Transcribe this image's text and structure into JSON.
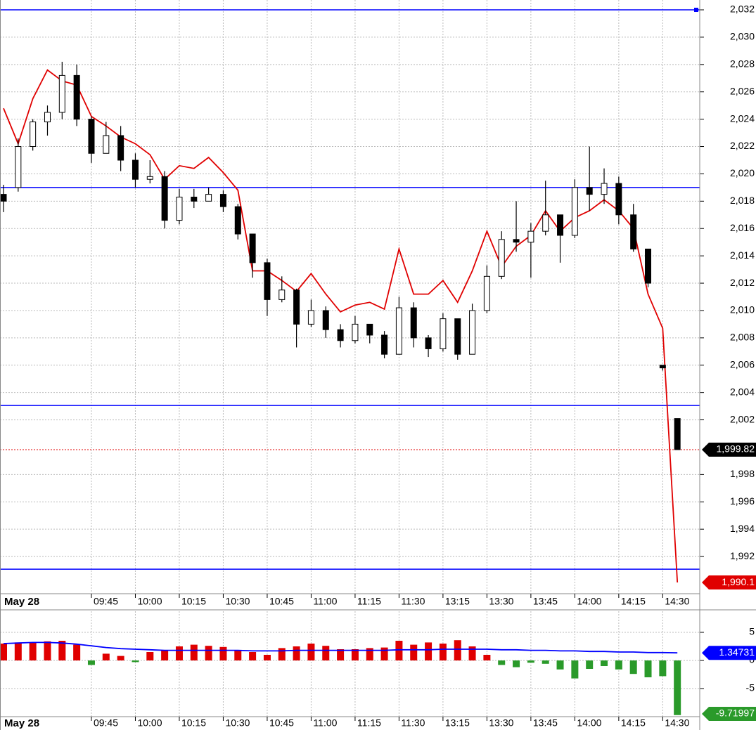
{
  "chart_data": [
    {
      "type": "candlestick",
      "date_label": "May 28",
      "categories": [
        null,
        null,
        null,
        null,
        null,
        null,
        "09:45",
        null,
        null,
        "10:00",
        null,
        null,
        "10:15",
        null,
        null,
        "10:30",
        null,
        null,
        "10:45",
        null,
        null,
        "11:00",
        null,
        null,
        "11:15",
        null,
        null,
        "11:30",
        null,
        null,
        "13:15",
        null,
        null,
        "13:30",
        null,
        null,
        "13:45",
        null,
        null,
        "14:00",
        null,
        null,
        "14:15",
        null,
        null,
        "14:30",
        null
      ],
      "open": [
        2018.5,
        2019.0,
        2022.0,
        2023.8,
        2024.5,
        2027.2,
        2024.0,
        2021.5,
        2022.8,
        2021.0,
        2019.6,
        2019.8,
        2016.6,
        2018.3,
        2018.0,
        2018.5,
        2017.6,
        2015.6,
        2013.5,
        2010.8,
        2011.5,
        2009.0,
        2010.0,
        2008.6,
        2007.8,
        2009.0,
        2008.2,
        2006.8,
        2010.2,
        2008.0,
        2007.2,
        2009.4,
        2006.8,
        2010.0,
        2012.5,
        2015.2,
        2015.0,
        2015.8,
        2017.0,
        2015.5,
        2019.0,
        2018.5,
        2019.3,
        2017.0,
        2014.5,
        2006.0,
        2002.1
      ],
      "high": [
        2019.2,
        2022.6,
        2024.0,
        2025.0,
        2028.2,
        2028.0,
        2024.2,
        2023.8,
        2023.5,
        2021.5,
        2021.0,
        2020.2,
        2018.9,
        2018.9,
        2019.0,
        2018.8,
        2017.8,
        2015.6,
        2013.8,
        2012.5,
        2011.6,
        2010.8,
        2010.3,
        2009.0,
        2009.6,
        2009.0,
        2008.5,
        2011.0,
        2010.6,
        2008.2,
        2009.8,
        2009.4,
        2010.5,
        2013.3,
        2015.8,
        2018.0,
        2016.4,
        2019.5,
        2017.0,
        2019.6,
        2022.0,
        2020.4,
        2019.8,
        2017.8,
        2014.5,
        2006.0,
        2002.1
      ],
      "low": [
        2017.2,
        2018.7,
        2021.7,
        2022.8,
        2024.0,
        2023.5,
        2020.8,
        2021.5,
        2020.2,
        2019.0,
        2019.3,
        2016.0,
        2016.3,
        2017.5,
        2018.0,
        2017.2,
        2015.2,
        2012.4,
        2009.6,
        2010.6,
        2007.3,
        2008.8,
        2008.0,
        2007.3,
        2007.6,
        2007.6,
        2006.5,
        2006.8,
        2007.3,
        2006.6,
        2007.0,
        2006.4,
        2006.8,
        2009.8,
        2012.3,
        2014.3,
        2012.4,
        2015.5,
        2013.5,
        2015.3,
        2017.3,
        2017.8,
        2016.3,
        2014.3,
        2011.7,
        2005.6,
        1999.82
      ],
      "close": [
        2018.0,
        2022.0,
        2023.8,
        2024.5,
        2027.2,
        2024.0,
        2021.5,
        2022.8,
        2021.0,
        2019.6,
        2019.8,
        2016.6,
        2018.3,
        2018.0,
        2018.5,
        2017.6,
        2015.6,
        2013.5,
        2010.8,
        2011.5,
        2009.0,
        2010.0,
        2008.6,
        2007.8,
        2009.0,
        2008.2,
        2006.8,
        2010.2,
        2008.0,
        2007.2,
        2009.4,
        2006.8,
        2010.0,
        2012.5,
        2015.2,
        2015.0,
        2015.8,
        2017.0,
        2015.5,
        2019.0,
        2018.5,
        2019.3,
        2017.0,
        2014.5,
        2012.0,
        2005.8,
        1999.82
      ],
      "line": {
        "color": "#e00000",
        "values": [
          2024.8,
          2022.2,
          2025.5,
          2027.6,
          2026.8,
          2026.5,
          2024.2,
          2023.5,
          2022.7,
          2022.2,
          2021.4,
          2019.6,
          2020.6,
          2020.4,
          2021.2,
          2020.1,
          2018.8,
          2012.9,
          2012.9,
          2012.2,
          2011.4,
          2012.7,
          2011.2,
          2009.9,
          2010.4,
          2010.6,
          2010.1,
          2014.5,
          2011.2,
          2011.2,
          2012.2,
          2010.6,
          2012.9,
          2015.8,
          2013.2,
          2014.7,
          2015.5,
          2017.3,
          2015.8,
          2016.8,
          2017.3,
          2018.1,
          2017.3,
          2016.0,
          2011.2,
          2008.7,
          1990.1
        ]
      },
      "levels": {
        "color": "#0000ff",
        "values": [
          2032,
          2019.0,
          2003.05,
          1991.07
        ]
      },
      "markers": [
        {
          "value": 1999.82,
          "label": "1,999.82",
          "color": "#000000",
          "guide_color": "#e00000"
        },
        {
          "value": 1990.1,
          "label": "1,990.1",
          "color": "#e00000"
        }
      ],
      "ylim": [
        1989.28,
        2032.72
      ],
      "yticks": [
        {
          "value": 1992,
          "label": "1,992"
        },
        {
          "value": 1994,
          "label": "1,994"
        },
        {
          "value": 1996,
          "label": "1,996"
        },
        {
          "value": 1998,
          "label": "1,998"
        },
        {
          "value": 2002,
          "label": "2,002"
        },
        {
          "value": 2004,
          "label": "2,004"
        },
        {
          "value": 2006,
          "label": "2,006"
        },
        {
          "value": 2008,
          "label": "2,008"
        },
        {
          "value": 2010,
          "label": "2,010"
        },
        {
          "value": 2012,
          "label": "2,012"
        },
        {
          "value": 2014,
          "label": "2,014"
        },
        {
          "value": 2016,
          "label": "2,016"
        },
        {
          "value": 2018,
          "label": "2,018"
        },
        {
          "value": 2020,
          "label": "2,020"
        },
        {
          "value": 2022,
          "label": "2,022"
        },
        {
          "value": 2024,
          "label": "2,024"
        },
        {
          "value": 2026,
          "label": "2,026"
        },
        {
          "value": 2028,
          "label": "2,028"
        },
        {
          "value": 2030,
          "label": "2,030"
        },
        {
          "value": 2032,
          "label": "2,032"
        }
      ],
      "grid": true
    },
    {
      "type": "bar",
      "date_label": "May 28",
      "categories": [
        null,
        null,
        null,
        null,
        null,
        null,
        "09:45",
        null,
        null,
        "10:00",
        null,
        null,
        "10:15",
        null,
        null,
        "10:30",
        null,
        null,
        "10:45",
        null,
        null,
        "11:00",
        null,
        null,
        "11:15",
        null,
        null,
        "11:30",
        null,
        null,
        "13:15",
        null,
        null,
        "13:30",
        null,
        null,
        "13:45",
        null,
        null,
        "14:00",
        null,
        null,
        "14:15",
        null,
        null,
        "14:30",
        null
      ],
      "values": [
        3.0,
        3.2,
        3.2,
        3.4,
        3.5,
        2.8,
        -0.8,
        1.2,
        0.8,
        -0.3,
        1.5,
        1.8,
        2.5,
        2.8,
        2.6,
        2.4,
        1.8,
        1.5,
        1.0,
        2.2,
        2.5,
        3.0,
        2.6,
        2.0,
        2.0,
        2.2,
        2.3,
        3.5,
        2.8,
        3.2,
        3.0,
        3.6,
        2.5,
        1.0,
        -0.8,
        -1.2,
        -0.4,
        -0.6,
        -1.6,
        -3.2,
        -1.5,
        -1.0,
        -1.6,
        -2.4,
        -3.0,
        -2.8,
        -9.71997
      ],
      "positive_color": "#e00000",
      "negative_color": "#2a9a2a",
      "line": {
        "color": "#0000ff",
        "values": [
          3.0,
          3.1,
          3.2,
          3.2,
          3.1,
          2.9,
          2.6,
          2.3,
          2.1,
          2.0,
          1.9,
          1.8,
          1.8,
          1.8,
          1.8,
          1.8,
          1.8,
          1.7,
          1.7,
          1.7,
          1.8,
          1.8,
          1.8,
          1.8,
          1.8,
          1.8,
          1.8,
          1.9,
          1.9,
          1.9,
          2.0,
          2.0,
          2.0,
          2.0,
          1.9,
          1.9,
          1.8,
          1.8,
          1.7,
          1.7,
          1.6,
          1.6,
          1.5,
          1.5,
          1.4,
          1.4,
          1.34731
        ]
      },
      "ylim": [
        -10,
        8.75
      ],
      "yticks": [
        -5,
        0,
        5
      ],
      "grid": true
    }
  ]
}
